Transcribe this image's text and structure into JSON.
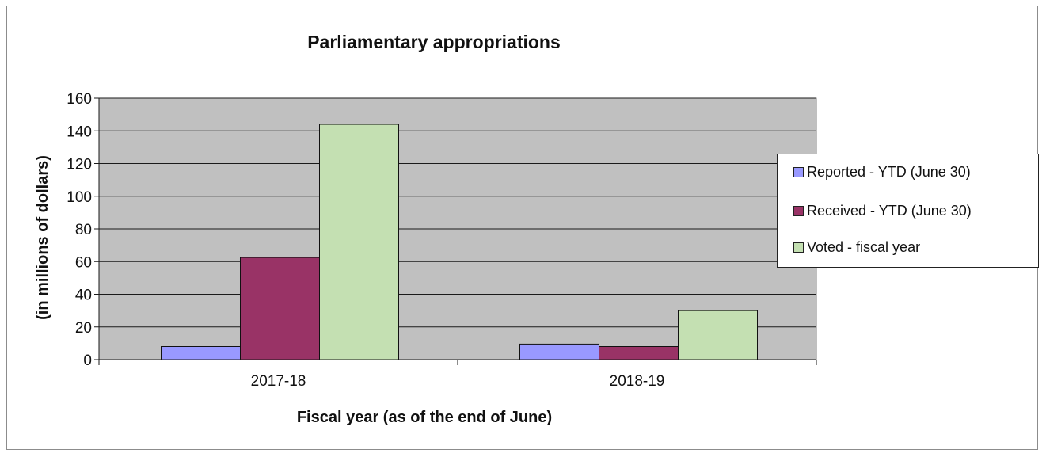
{
  "chart_data": {
    "type": "bar",
    "title": "Parliamentary appropriations",
    "xlabel": "Fiscal year (as of the end of June)",
    "ylabel": "(in millions of dollars)",
    "categories": [
      "2017-18",
      "2018-19"
    ],
    "ylim": [
      0,
      160
    ],
    "yticks": [
      0,
      20,
      40,
      60,
      80,
      100,
      120,
      140,
      160
    ],
    "grid": true,
    "legend_position": "right",
    "series": [
      {
        "name": "Reported - YTD (June 30)",
        "color": "#9999ff",
        "values": [
          8,
          9.5
        ]
      },
      {
        "name": "Received - YTD (June 30)",
        "color": "#993366",
        "values": [
          62.5,
          8
        ]
      },
      {
        "name": "Voted - fiscal year",
        "color": "#c4e0b2",
        "values": [
          144,
          30
        ]
      }
    ]
  }
}
